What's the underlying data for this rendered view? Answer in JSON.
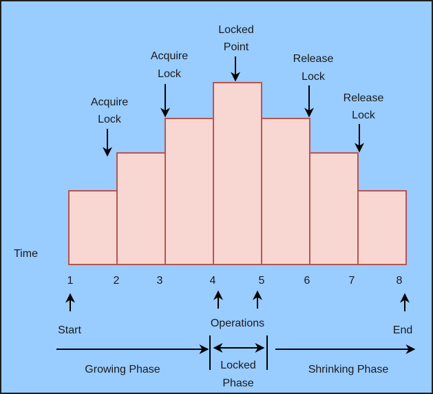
{
  "y_label": "Time",
  "bars": [
    {
      "from": "1",
      "to": "2",
      "level": 1
    },
    {
      "from": "2",
      "to": "3",
      "level": 2
    },
    {
      "from": "3",
      "to": "4",
      "level": 3
    },
    {
      "from": "4",
      "to": "5",
      "level": 4
    },
    {
      "from": "5",
      "to": "6",
      "level": 3
    },
    {
      "from": "6",
      "to": "7",
      "level": 2
    },
    {
      "from": "7",
      "to": "8",
      "level": 1
    }
  ],
  "ticks": [
    "1",
    "2",
    "3",
    "4",
    "5",
    "6",
    "7",
    "8"
  ],
  "top_labels": [
    {
      "lines": [
        "Acquire",
        "Lock"
      ]
    },
    {
      "lines": [
        "Acquire",
        "Lock"
      ]
    },
    {
      "lines": [
        "Locked",
        "Point"
      ]
    },
    {
      "lines": [
        "Release",
        "Lock"
      ]
    },
    {
      "lines": [
        "Release",
        "Lock"
      ]
    }
  ],
  "markers": {
    "start": "Start",
    "operations": "Operations",
    "end": "End"
  },
  "phases": {
    "growing": "Growing Phase",
    "locked": [
      "Locked",
      "Phase"
    ],
    "shrinking": "Shrinking Phase"
  },
  "colors": {
    "background": "#99ccff",
    "bar_fill": "#f8d7d2",
    "bar_stroke": "#b85450",
    "ink": "#000000"
  }
}
